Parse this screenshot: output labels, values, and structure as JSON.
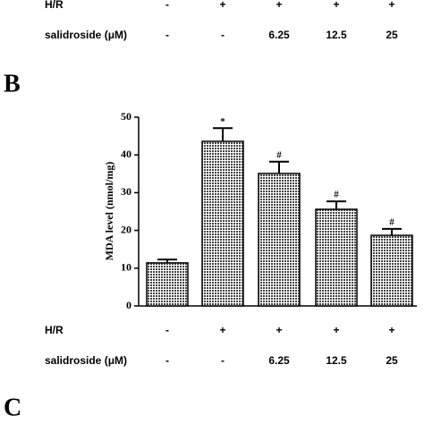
{
  "chart_data": {
    "type": "bar",
    "top_panel_label": "B",
    "bottom_panel_label": "C",
    "ylabel": "MDA level (nmol/mg)",
    "categories": [
      null,
      null,
      null,
      null,
      null
    ],
    "values": [
      11.4,
      43.6,
      35.1,
      25.6,
      18.7
    ],
    "errors": [
      0.9,
      3.5,
      3.1,
      2.1,
      1.7
    ],
    "annotations": [
      null,
      "*",
      "#",
      "#",
      "#"
    ],
    "color": "#444444",
    "ylim": [
      0,
      50
    ],
    "yticks": [
      0,
      10,
      20,
      30,
      40,
      50
    ],
    "treatments_above": [
      {
        "name": "H/R",
        "values": [
          "-",
          "+",
          "+",
          "+",
          "+"
        ]
      },
      {
        "name": "salidroside (μM)",
        "values": [
          "-",
          "-",
          "6.25",
          "12.5",
          "25"
        ]
      }
    ],
    "treatments": [
      {
        "name": "H/R",
        "values": [
          "-",
          "+",
          "+",
          "+",
          "+"
        ]
      },
      {
        "name": "salidroside (μM)",
        "values": [
          "-",
          "-",
          "6.25",
          "12.5",
          "25"
        ]
      }
    ]
  }
}
